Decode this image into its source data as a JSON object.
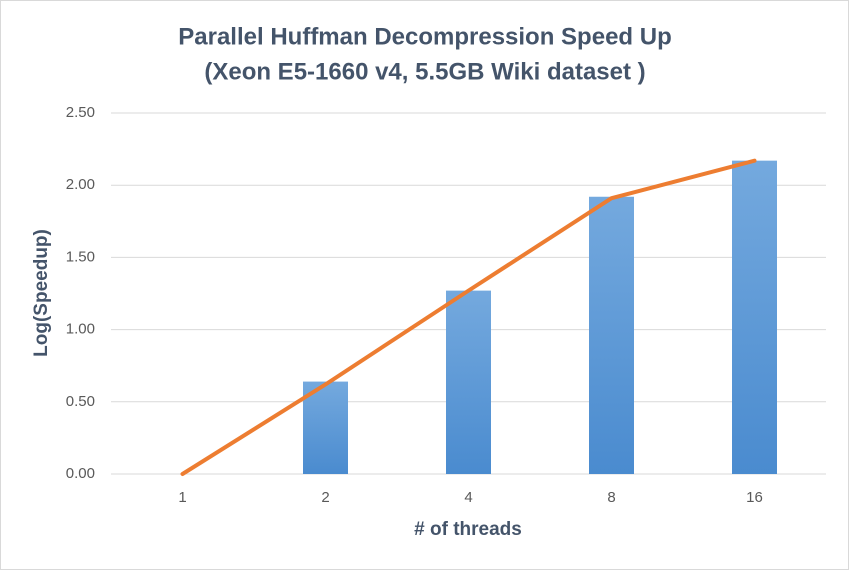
{
  "chart_data": {
    "type": "bar",
    "title": "Parallel  Huffman Decompression Speed Up",
    "subtitle": "(Xeon E5-1660 v4, 5.5GB Wiki dataset )",
    "x_label": "# of threads",
    "y_label": "Log(Speedup)",
    "categories": [
      "1",
      "2",
      "4",
      "8",
      "16"
    ],
    "series": [
      {
        "type": "bar",
        "color": "#5b9bd5",
        "values": [
          0,
          0.64,
          1.27,
          1.92,
          2.17
        ]
      },
      {
        "type": "line",
        "color": "#ed7d31",
        "values": [
          0,
          0.62,
          1.27,
          1.91,
          2.17
        ]
      }
    ],
    "ylim": [
      0,
      2.5
    ],
    "yticks": [
      {
        "value": 0,
        "label": "0.00"
      },
      {
        "value": 0.5,
        "label": "0.50"
      },
      {
        "value": 1,
        "label": "1.00"
      },
      {
        "value": 1.5,
        "label": "1.50"
      },
      {
        "value": 2,
        "label": "2.00"
      },
      {
        "value": 2.5,
        "label": "2.50"
      }
    ],
    "grid": true
  }
}
